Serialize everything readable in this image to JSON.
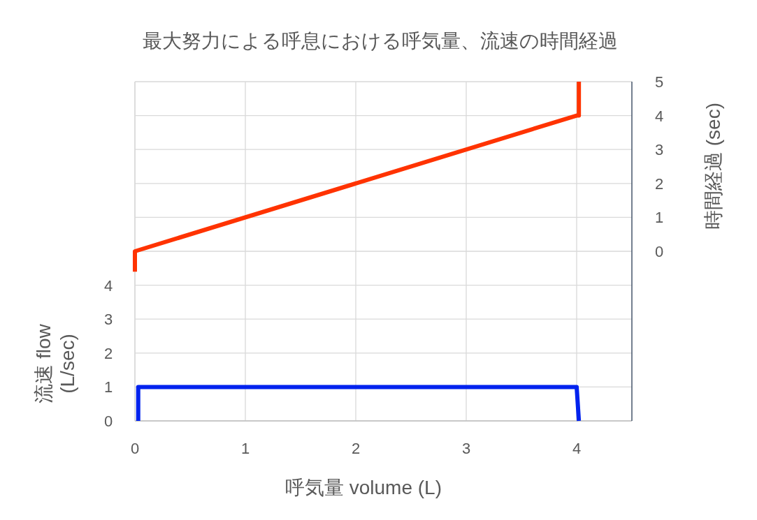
{
  "chart_data": {
    "type": "line",
    "title": "最大努力による呼息における呼気量、流速の時間経過",
    "xlabel": "呼気量 volume (L)",
    "ylabel": "流速 flow\n(L/sec)",
    "y2label": "時間経過 (sec)",
    "xlim": [
      0,
      4.5
    ],
    "xticks": [
      0,
      1,
      2,
      3,
      4
    ],
    "ylim": [
      0,
      10
    ],
    "yticks": [
      0,
      1,
      2,
      3,
      4,
      {
        "value": 5,
        "label": null
      },
      {
        "value": 6,
        "label": null
      },
      {
        "value": 7,
        "label": null
      },
      {
        "value": 8,
        "label": null
      },
      {
        "value": 9,
        "label": null
      },
      {
        "value": 10,
        "label": null
      }
    ],
    "y2lim": [
      -5,
      5
    ],
    "y2ticks": [
      0,
      1,
      2,
      3,
      4,
      5
    ],
    "grid": true,
    "marker": "none",
    "line_style": "solid",
    "series": [
      {
        "color": "#0022ee",
        "x": [
          0.03,
          0.03,
          4,
          4.02
        ],
        "values": [
          0,
          1,
          1,
          0
        ]
      },
      {
        "color": "#ff3300",
        "axis": "y2",
        "x": [
          0,
          0,
          4,
          4.02,
          4.02
        ],
        "values": [
          -0.6,
          0,
          4,
          4,
          5
        ]
      }
    ]
  }
}
